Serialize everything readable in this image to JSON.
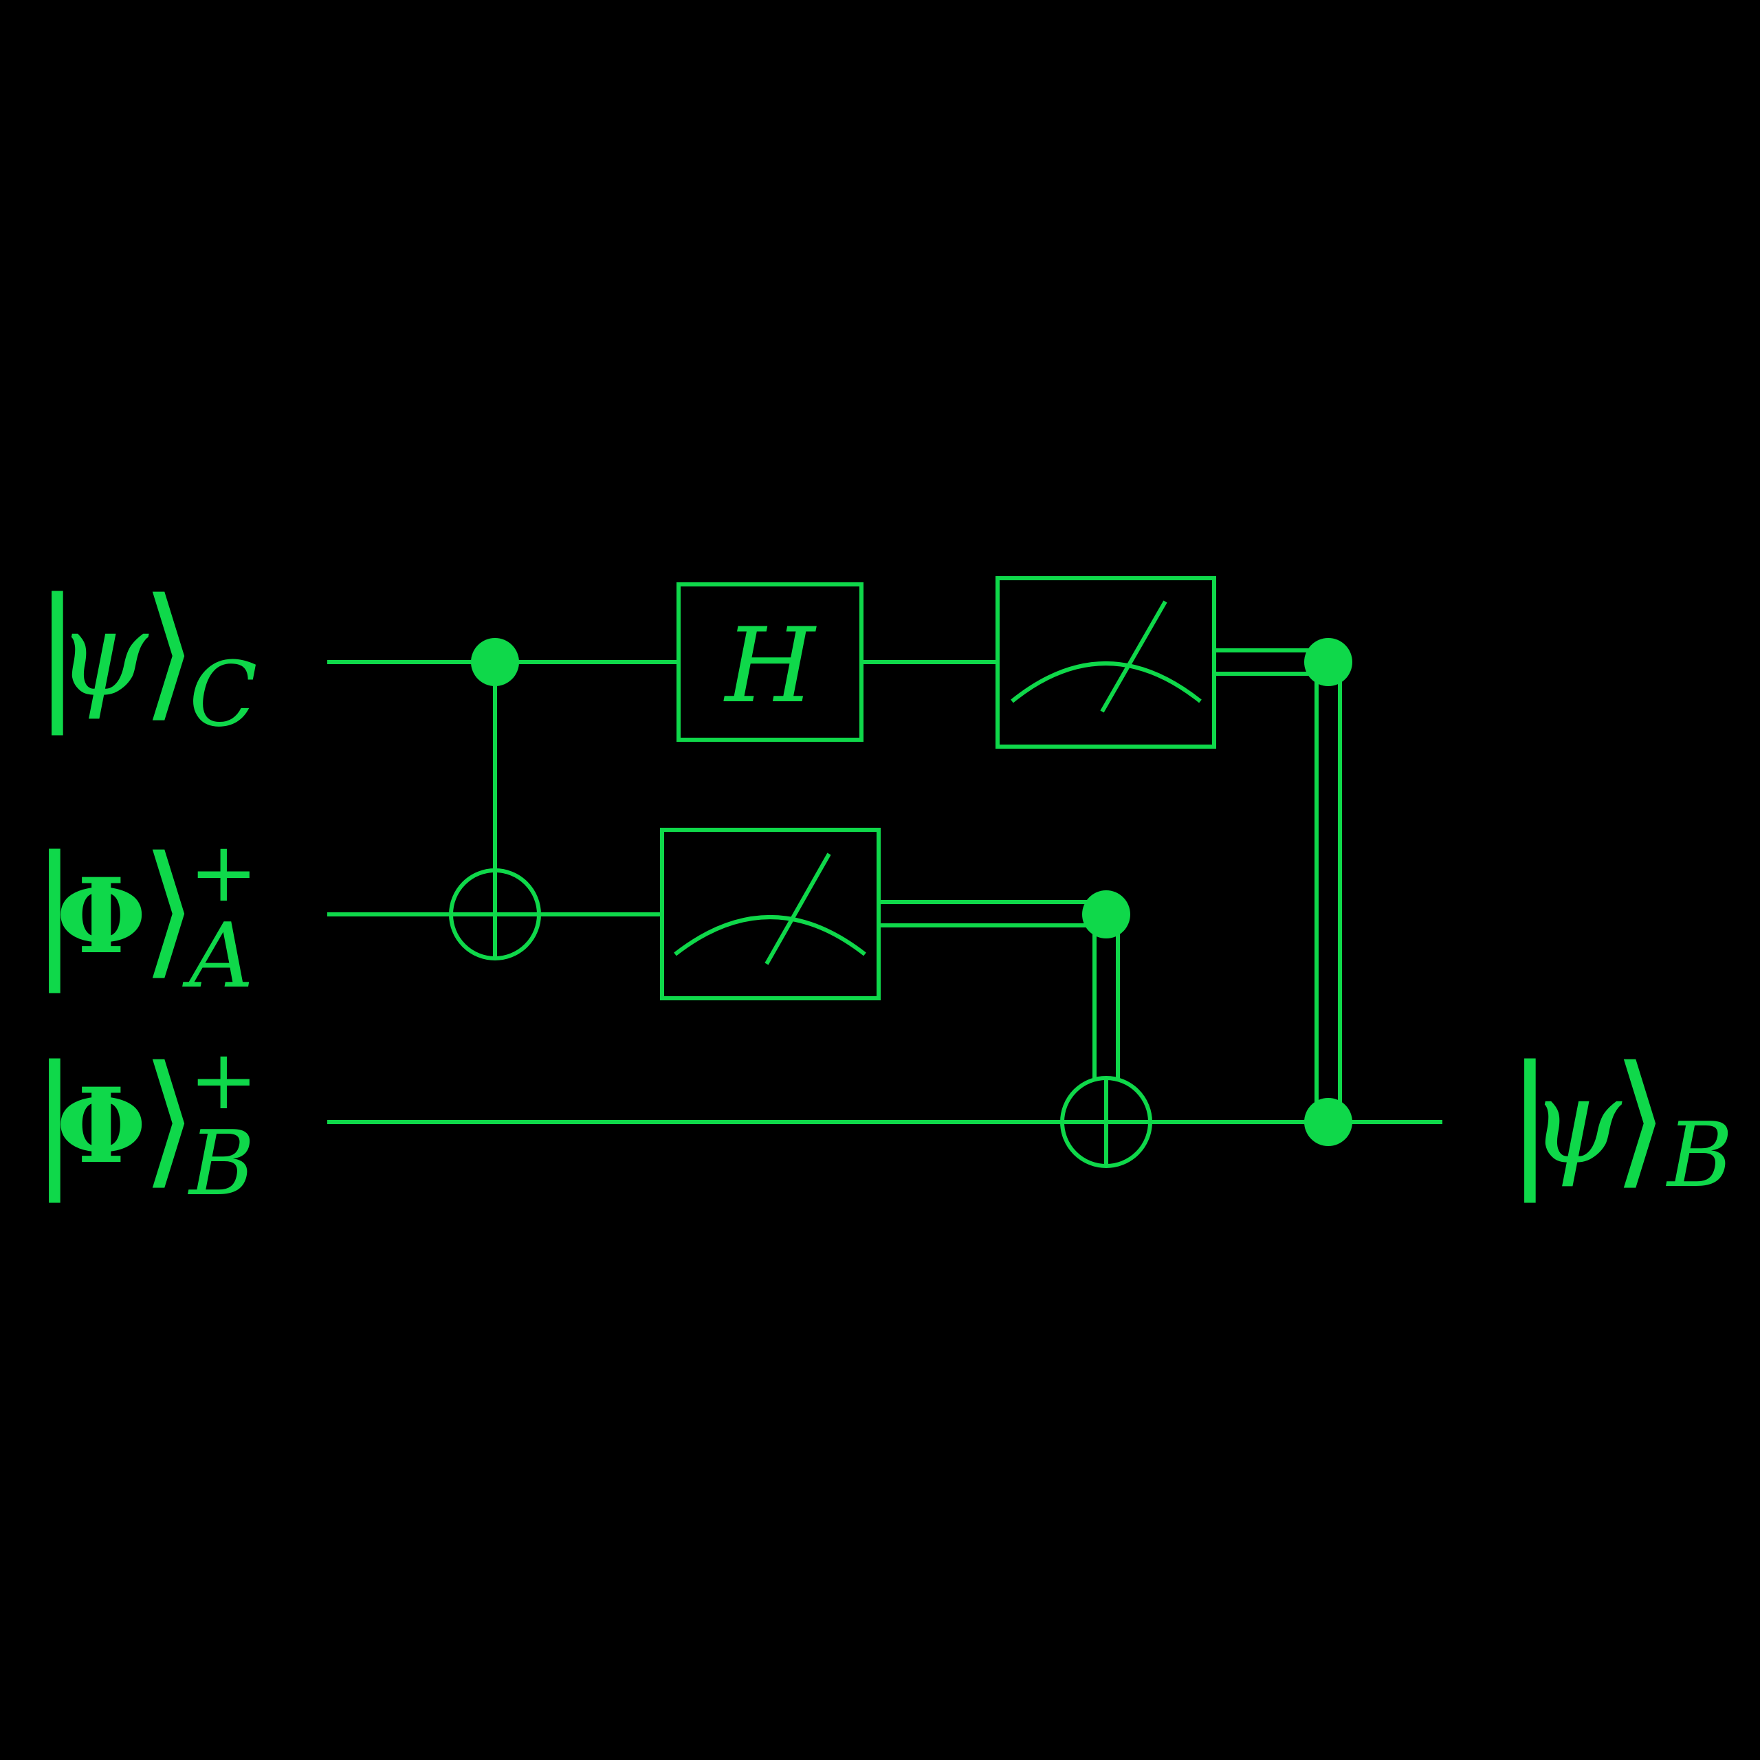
{
  "colors": {
    "foreground": "#0fd84a",
    "background": "#000000"
  },
  "labels": {
    "q0": {
      "ket_open": "|",
      "symbol": "ψ",
      "ket_close": "⟩",
      "subscript": "C",
      "superscript": ""
    },
    "q1": {
      "ket_open": "|",
      "symbol": "Φ",
      "ket_close": "⟩",
      "subscript": "A",
      "superscript": "+"
    },
    "q2": {
      "ket_open": "|",
      "symbol": "Φ",
      "ket_close": "⟩",
      "subscript": "B",
      "superscript": "+"
    },
    "output": {
      "ket_open": "|",
      "symbol": "ψ",
      "ket_close": "⟩",
      "subscript": "B"
    }
  },
  "gates": {
    "hadamard": "H"
  },
  "icons": [
    "control-dot-icon",
    "target-xor-icon",
    "measurement-meter-icon"
  ]
}
